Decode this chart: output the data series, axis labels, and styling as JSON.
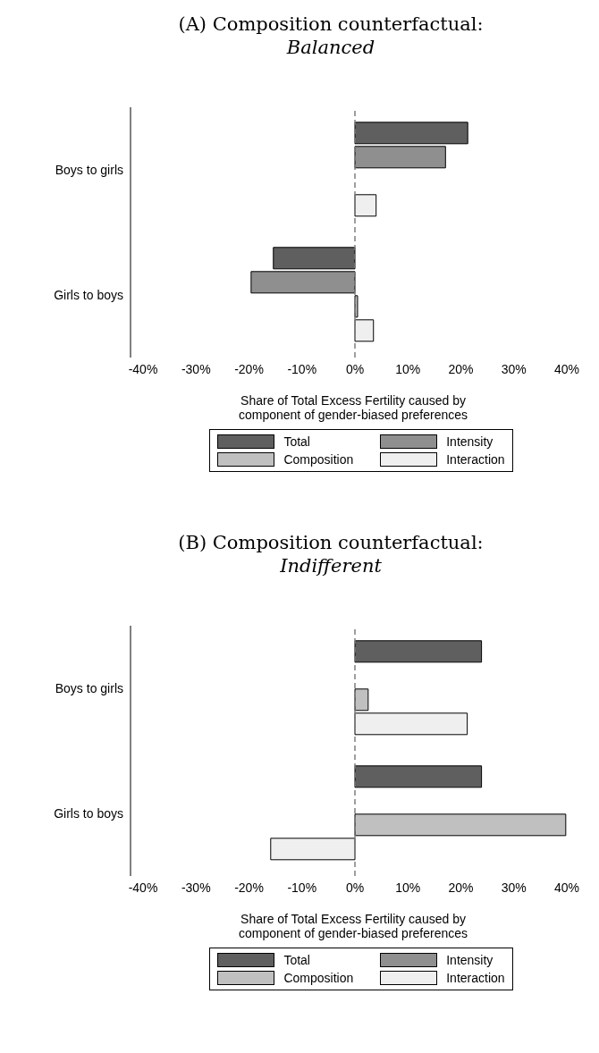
{
  "chart_data": [
    {
      "type": "bar",
      "orientation": "horizontal",
      "title": "(A) Composition counterfactual:",
      "subtitle": "Balanced",
      "xlabel": "Share of Total Excess Fertility caused by component of gender-biased preferences",
      "categories": [
        "Boys to girls",
        "Girls to boys"
      ],
      "series": [
        {
          "name": "Total",
          "color": "#5f5f5f",
          "values": [
            21.3,
            -15.4
          ]
        },
        {
          "name": "Intensity",
          "color": "#8f8f8f",
          "values": [
            17.1,
            -19.6
          ]
        },
        {
          "name": "Composition",
          "color": "#c0c0c0",
          "values": [
            0,
            0.5
          ]
        },
        {
          "name": "Interaction",
          "color": "#efefef",
          "values": [
            4.0,
            3.5
          ]
        }
      ],
      "xlim": [
        -40,
        40
      ],
      "xticks": [
        {
          "value": -40,
          "label": "-40%"
        },
        {
          "value": -30,
          "label": "-30%"
        },
        {
          "value": -20,
          "label": "-20%"
        },
        {
          "value": -10,
          "label": "-10%"
        },
        {
          "value": 0,
          "label": "0%"
        },
        {
          "value": 10,
          "label": "10%"
        },
        {
          "value": 20,
          "label": "20%"
        },
        {
          "value": 30,
          "label": "30%"
        },
        {
          "value": 40,
          "label": "40%"
        }
      ],
      "ref_lines": [
        {
          "axis": "x",
          "value": 0,
          "color": "#7f7f7f",
          "line_style": "dashed"
        }
      ],
      "grid": false,
      "legend": "bottom"
    },
    {
      "type": "bar",
      "orientation": "horizontal",
      "title": "(B) Composition counterfactual:",
      "subtitle": "Indifferent",
      "xlabel": "Share of Total Excess Fertility caused by component of gender-biased preferences",
      "categories": [
        "Boys to girls",
        "Girls to boys"
      ],
      "series": [
        {
          "name": "Total",
          "color": "#5f5f5f",
          "values": [
            23.9,
            23.9
          ]
        },
        {
          "name": "Intensity",
          "color": "#8f8f8f",
          "values": [
            null,
            null
          ]
        },
        {
          "name": "Composition",
          "color": "#c0c0c0",
          "values": [
            2.5,
            39.8
          ]
        },
        {
          "name": "Interaction",
          "color": "#efefef",
          "values": [
            21.2,
            -15.9
          ]
        }
      ],
      "xlim": [
        -40,
        40
      ],
      "xticks": [
        {
          "value": -40,
          "label": "-40%"
        },
        {
          "value": -30,
          "label": "-30%"
        },
        {
          "value": -20,
          "label": "-20%"
        },
        {
          "value": -10,
          "label": "-10%"
        },
        {
          "value": 0,
          "label": "0%"
        },
        {
          "value": 10,
          "label": "10%"
        },
        {
          "value": 20,
          "label": "20%"
        },
        {
          "value": 30,
          "label": "30%"
        },
        {
          "value": 40,
          "label": "40%"
        }
      ],
      "ref_lines": [
        {
          "axis": "x",
          "value": 0,
          "color": "#7f7f7f",
          "line_style": "dashed"
        }
      ],
      "grid": false,
      "legend": "bottom"
    }
  ]
}
